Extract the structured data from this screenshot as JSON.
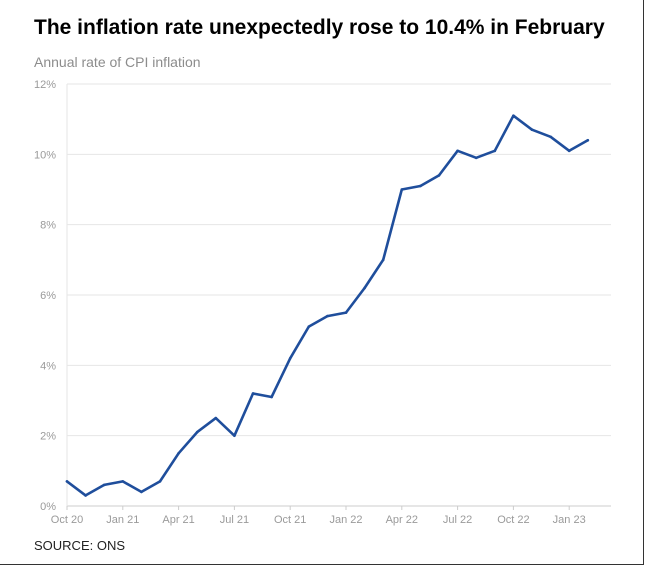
{
  "title": "The inflation rate unexpectedly rose to 10.4% in February",
  "subtitle": "Annual rate of CPI inflation",
  "source": "SOURCE: ONS",
  "colors": {
    "line": "#1f4e9c",
    "grid": "#e6e6e6",
    "axis": "#cccccc",
    "tick_text": "#9a9a9a"
  },
  "chart_data": {
    "type": "line",
    "title": "The inflation rate unexpectedly rose to 10.4% in February",
    "subtitle": "Annual rate of CPI inflation",
    "xlabel": "",
    "ylabel": "",
    "ylim": [
      0,
      12
    ],
    "y_ticks": [
      "0%",
      "2%",
      "4%",
      "6%",
      "8%",
      "10%",
      "12%"
    ],
    "x_tick_labels": [
      "Oct 20",
      "Jan 21",
      "Apr 21",
      "Jul 21",
      "Oct 21",
      "Jan 22",
      "Apr 22",
      "Jul 22",
      "Oct 22",
      "Jan 23"
    ],
    "grid": true,
    "legend": "none",
    "x": [
      "Oct 20",
      "Nov 20",
      "Dec 20",
      "Jan 21",
      "Feb 21",
      "Mar 21",
      "Apr 21",
      "May 21",
      "Jun 21",
      "Jul 21",
      "Aug 21",
      "Sep 21",
      "Oct 21",
      "Nov 21",
      "Dec 21",
      "Jan 22",
      "Feb 22",
      "Mar 22",
      "Apr 22",
      "May 22",
      "Jun 22",
      "Jul 22",
      "Aug 22",
      "Sep 22",
      "Oct 22",
      "Nov 22",
      "Dec 22",
      "Jan 23",
      "Feb 23"
    ],
    "series": [
      {
        "values": [
          0.7,
          0.3,
          0.6,
          0.7,
          0.4,
          0.7,
          1.5,
          2.1,
          2.5,
          2.0,
          3.2,
          3.1,
          4.2,
          5.1,
          5.4,
          5.5,
          6.2,
          7.0,
          9.0,
          9.1,
          9.4,
          10.1,
          9.9,
          10.1,
          11.1,
          10.7,
          10.5,
          10.1,
          10.4
        ]
      }
    ]
  }
}
